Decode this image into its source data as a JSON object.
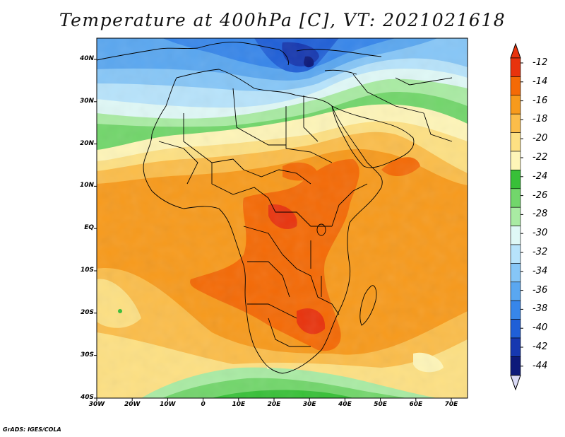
{
  "title": "Temperature at 400hPa [C], VT: 2021021618",
  "footer": "GrADS: IGES/COLA",
  "lat_labels": [
    "40N",
    "30N",
    "20N",
    "10N",
    "EQ",
    "10S",
    "20S",
    "30S",
    "40S"
  ],
  "lon_labels": [
    "30W",
    "20W",
    "10W",
    "0",
    "10E",
    "20E",
    "30E",
    "40E",
    "50E",
    "60E",
    "70E"
  ],
  "colorbar": {
    "labels": [
      "-12",
      "-14",
      "-16",
      "-18",
      "-20",
      "-22",
      "-24",
      "-26",
      "-28",
      "-30",
      "-32",
      "-34",
      "-36",
      "-38",
      "-40",
      "-42",
      "-44"
    ],
    "colors": [
      "#e8330d",
      "#f46a06",
      "#f79a1c",
      "#fbbd4a",
      "#fde083",
      "#fef5b8",
      "#38c038",
      "#72d66b",
      "#a9eba3",
      "#dff8f6",
      "#b7e3fb",
      "#86c6f7",
      "#5aa7f0",
      "#3786ea",
      "#1f5fd7",
      "#1638b0",
      "#0d1a7a"
    ],
    "over_color": "#e8330d",
    "under_color": "#d9d9f5"
  }
}
